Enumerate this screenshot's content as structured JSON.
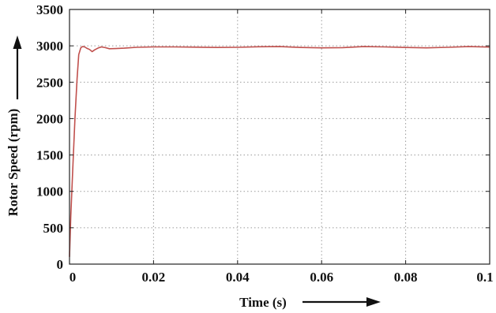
{
  "chart_data": {
    "type": "line",
    "xlabel": "Time (s)",
    "ylabel": "Rotor Speed (rpm)",
    "xlim": [
      0,
      0.1
    ],
    "ylim": [
      0,
      3500
    ],
    "x_ticks": [
      0,
      0.02,
      0.04,
      0.06,
      0.08,
      0.1
    ],
    "x_tick_labels": [
      "0",
      "0.02",
      "0.04",
      "0.06",
      "0.08",
      "0.1"
    ],
    "y_ticks": [
      0,
      500,
      1000,
      1500,
      2000,
      2500,
      3000,
      3500
    ],
    "y_tick_labels": [
      "0",
      "500",
      "1000",
      "1500",
      "2000",
      "2500",
      "3000",
      "3500"
    ],
    "grid": true,
    "series": [
      {
        "color": "#c0504d",
        "x": [
          0,
          0.0003,
          0.0008,
          0.0013,
          0.0018,
          0.0022,
          0.0027,
          0.0031,
          0.0036,
          0.0042,
          0.0048,
          0.0054,
          0.006,
          0.0068,
          0.0076,
          0.0085,
          0.0095,
          0.011,
          0.013,
          0.016,
          0.02,
          0.025,
          0.03,
          0.035,
          0.04,
          0.045,
          0.05,
          0.055,
          0.06,
          0.065,
          0.07,
          0.075,
          0.08,
          0.085,
          0.09,
          0.095,
          0.1
        ],
        "y": [
          100,
          650,
          1350,
          2000,
          2550,
          2880,
          2975,
          2990,
          2985,
          2965,
          2950,
          2920,
          2945,
          2970,
          2985,
          2975,
          2960,
          2962,
          2968,
          2980,
          2985,
          2985,
          2982,
          2978,
          2980,
          2988,
          2990,
          2978,
          2972,
          2976,
          2990,
          2985,
          2978,
          2972,
          2980,
          2990,
          2983
        ]
      }
    ]
  }
}
